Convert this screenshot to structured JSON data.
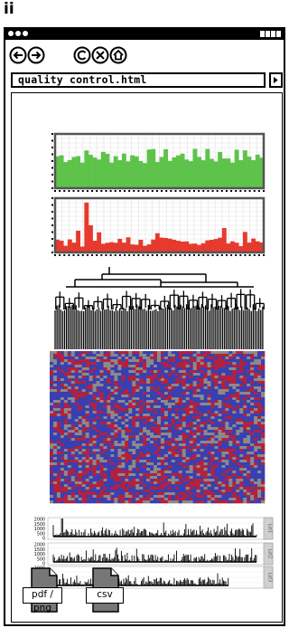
{
  "panel_label": "ii",
  "address_bar": {
    "url": "quality control.html"
  },
  "nav": {
    "back_icon": "back-arrow-icon",
    "forward_icon": "forward-arrow-icon",
    "copyright_icon": "copyright-icon",
    "stop_icon": "stop-icon",
    "home_icon": "home-icon"
  },
  "colors": {
    "green": "#5ec34a",
    "red": "#e63a2e",
    "blue": "#3a3fb0",
    "crimson": "#b5203b",
    "grey": "#8a8a8a"
  },
  "bottom_charts": {
    "y_ticks": [
      "2000",
      "1500",
      "1000",
      "500",
      "0"
    ],
    "strip_labels": [
      "Lot1",
      "Lot2",
      "Lot3"
    ]
  },
  "downloads": [
    {
      "label": "pdf / png"
    },
    {
      "label": "csv"
    }
  ]
}
